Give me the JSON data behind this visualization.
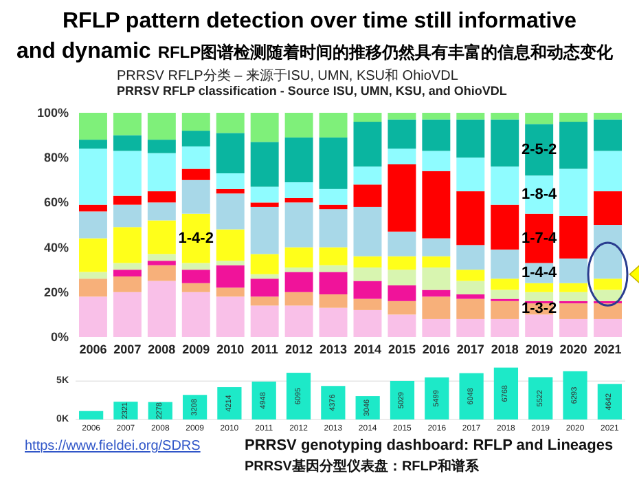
{
  "chart_data": [
    {
      "type": "bar",
      "stacked": true,
      "title": "RFLP pattern detection over time still informative and dynamic",
      "subtitle": "RFLP图谱检测随着时间的推移仍然具有丰富的信息和动态变化",
      "annotations": [
        "PRRSV RFLP分类 – 来源于ISU, UMN, KSU和 OhioVDL",
        "PRRSV RFLP classification - Source ISU, UMN, KSU, and OhioVDL"
      ],
      "categories": [
        "2006",
        "2007",
        "2008",
        "2009",
        "2010",
        "2011",
        "2012",
        "2013",
        "2014",
        "2015",
        "2016",
        "2017",
        "2018",
        "2019",
        "2020",
        "2021"
      ],
      "series": [
        {
          "color": "#f9c0e8",
          "values": [
            18,
            20,
            25,
            20,
            18,
            14,
            14,
            13,
            12,
            10,
            8,
            8,
            8,
            10,
            8,
            8
          ]
        },
        {
          "name": "1-3-2",
          "color": "#f7b07a",
          "values": [
            8,
            7,
            7,
            4,
            4,
            4,
            6,
            6,
            5,
            6,
            10,
            9,
            8,
            5,
            7,
            7
          ]
        },
        {
          "color": "#f0139a",
          "values": [
            0,
            3,
            2,
            6,
            10,
            8,
            9,
            10,
            8,
            7,
            3,
            2,
            1,
            1,
            1,
            1
          ]
        },
        {
          "color": "#d8f5b0",
          "values": [
            3,
            3,
            3,
            3,
            2,
            2,
            2,
            3,
            6,
            7,
            10,
            6,
            4,
            4,
            4,
            5
          ]
        },
        {
          "name": "1-4-2",
          "color": "#ffff1a",
          "values": [
            15,
            16,
            15,
            22,
            14,
            9,
            9,
            8,
            5,
            6,
            5,
            5,
            5,
            4,
            4,
            5
          ]
        },
        {
          "name": "1-4-4",
          "color": "#a8d8e8",
          "values": [
            12,
            10,
            8,
            15,
            16,
            21,
            20,
            17,
            22,
            11,
            8,
            11,
            13,
            9,
            11,
            24
          ]
        },
        {
          "name": "1-7-4",
          "color": "#ff0000",
          "values": [
            3,
            4,
            5,
            5,
            2,
            2,
            2,
            2,
            10,
            30,
            30,
            24,
            20,
            22,
            19,
            15
          ]
        },
        {
          "name": "1-8-4",
          "color": "#8ffcff",
          "values": [
            25,
            20,
            17,
            10,
            7,
            7,
            7,
            7,
            8,
            7,
            9,
            15,
            17,
            17,
            21,
            18
          ]
        },
        {
          "name": "2-5-2",
          "color": "#0ab5a0",
          "values": [
            4,
            7,
            6,
            7,
            18,
            20,
            20,
            23,
            20,
            13,
            14,
            17,
            21,
            23,
            21,
            14
          ]
        },
        {
          "color": "#7ff07a",
          "values": [
            12,
            10,
            12,
            8,
            9,
            13,
            11,
            11,
            4,
            3,
            3,
            3,
            3,
            5,
            4,
            3
          ]
        }
      ],
      "ylim": [
        0,
        100
      ],
      "yticks": [
        {
          "value": 0,
          "label": "0%"
        },
        {
          "value": 20,
          "label": "20%"
        },
        {
          "value": 40,
          "label": "40%"
        },
        {
          "value": 60,
          "label": "60%"
        },
        {
          "value": 80,
          "label": "80%"
        },
        {
          "value": 100,
          "label": "100%"
        }
      ],
      "tick_labels": true
    },
    {
      "type": "bar",
      "categories": [
        "2006",
        "2007",
        "2008",
        "2009",
        "2010",
        "2011",
        "2012",
        "2013",
        "2014",
        "2015",
        "2016",
        "2017",
        "2018",
        "2019",
        "2020",
        "2021"
      ],
      "values": [
        1100,
        2321,
        2278,
        3208,
        4214,
        4948,
        6095,
        4376,
        3046,
        5029,
        5499,
        6048,
        6768,
        5522,
        6293,
        4642
      ],
      "value_labels": [
        null,
        "2321",
        "2278",
        "3208",
        "4214",
        "4948",
        "6095",
        "4376",
        "3046",
        "5029",
        "5499",
        "6048",
        "6768",
        "5522",
        "6293",
        "4642"
      ],
      "color": "#1de9c8",
      "ylim": [
        0,
        7000
      ],
      "yticks": [
        {
          "value": 0,
          "label": "0K"
        },
        {
          "value": 5000,
          "label": "5K"
        }
      ],
      "grid": "y",
      "annotations": [
        "https://www.fieldei.org/SDRS",
        "PRRSV genotyping dashboard: RFLP and Lineages",
        "PRRSV基因分型仪表盘：RFLP和谱系"
      ]
    }
  ]
}
